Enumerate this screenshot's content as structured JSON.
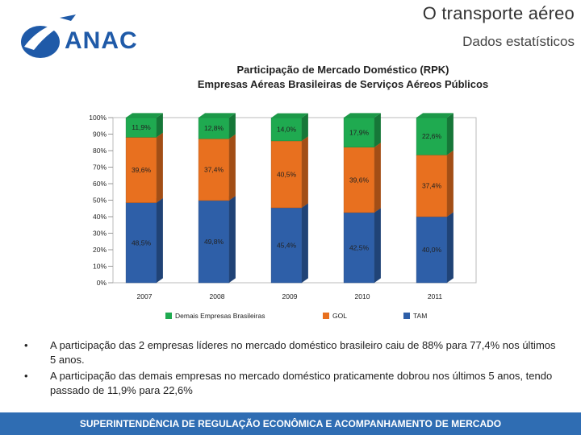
{
  "header": {
    "title": "O transporte aéreo",
    "subtitle": "Dados estatísticos",
    "logo_text": "ANAC"
  },
  "chart_data": {
    "type": "bar",
    "stacked": true,
    "title_line1": "Participação de Mercado Doméstico (RPK)",
    "title_line2": "Empresas Aéreas Brasileiras de Serviços Aéreos Públicos",
    "categories": [
      "2007",
      "2008",
      "2009",
      "2010",
      "2011"
    ],
    "series": [
      {
        "name": "TAM",
        "color": "#2e5fa8",
        "values": [
          48.5,
          49.8,
          45.4,
          42.5,
          40.0
        ],
        "labels": [
          "48,5%",
          "49,8%",
          "45,4%",
          "42,5%",
          "40,0%"
        ]
      },
      {
        "name": "GOL",
        "color": "#e8701f",
        "values": [
          39.6,
          37.4,
          40.5,
          39.6,
          37.4
        ],
        "labels": [
          "39,6%",
          "37,4%",
          "40,5%",
          "39,6%",
          "37,4%"
        ]
      },
      {
        "name": "Demais Empresas Brasileiras",
        "color": "#1faa50",
        "values": [
          11.9,
          12.8,
          14.0,
          17.9,
          22.6
        ],
        "labels": [
          "11,9%",
          "12,8%",
          "14,0%",
          "17,9%",
          "22,6%"
        ]
      }
    ],
    "legend_order": [
      "Demais Empresas Brasileiras",
      "GOL",
      "TAM"
    ],
    "ylim": [
      0,
      100
    ],
    "yticks": [
      "0%",
      "10%",
      "20%",
      "30%",
      "40%",
      "50%",
      "60%",
      "70%",
      "80%",
      "90%",
      "100%"
    ]
  },
  "bullets": [
    "A participação das 2 empresas líderes no mercado doméstico brasileiro caiu de 88% para 77,4% nos últimos 5 anos.",
    "A participação das demais empresas no mercado doméstico praticamente dobrou nos últimos 5 anos, tendo passado de 11,9% para 22,6%"
  ],
  "footer": {
    "text": "SUPERINTENDÊNCIA DE REGULAÇÃO ECONÔMICA E ACOMPANHAMENTO DE MERCADO"
  }
}
